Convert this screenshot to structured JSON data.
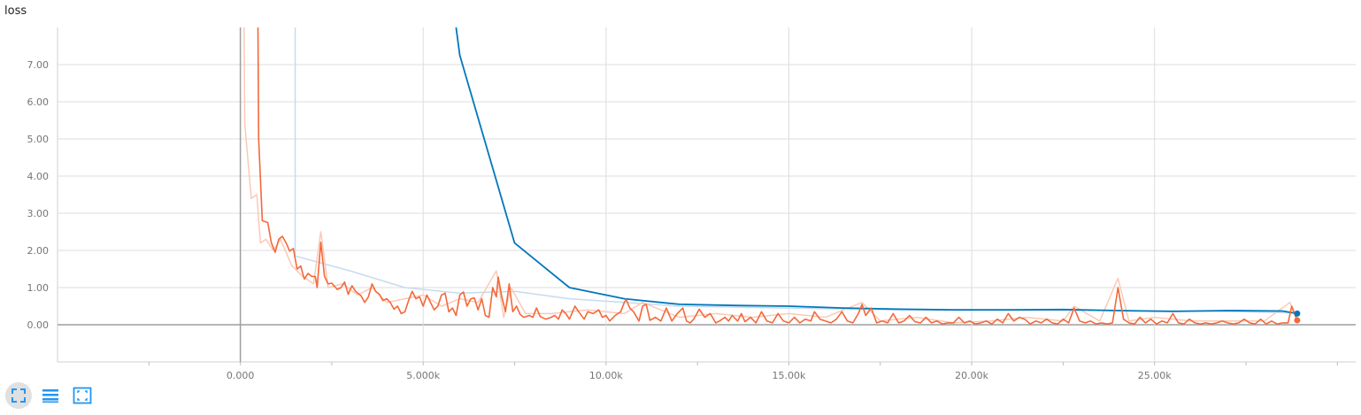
{
  "title": "loss",
  "toolbar": {
    "buttons": [
      {
        "icon": "fullscreen-icon",
        "active": true
      },
      {
        "icon": "list-icon",
        "active": false
      },
      {
        "icon": "fit-domain-icon",
        "active": false
      }
    ],
    "icon_color": "#2196f3"
  },
  "chart_data": {
    "type": "line",
    "xlim": [
      -5000,
      30500
    ],
    "ylim": [
      -1.0,
      8.0
    ],
    "x_ticks": [
      0,
      5000,
      10000,
      15000,
      20000,
      25000
    ],
    "x_tick_labels": [
      "0.000",
      "5.000k",
      "10.00k",
      "15.00k",
      "20.00k",
      "25.00k"
    ],
    "y_ticks": [
      0,
      1,
      2,
      3,
      4,
      5,
      6,
      7
    ],
    "y_tick_labels": [
      "0.00",
      "1.00",
      "2.00",
      "3.00",
      "4.00",
      "5.00",
      "6.00",
      "7.00"
    ],
    "grid": true,
    "series": [
      {
        "color": "#0077bb",
        "raw_color": "#c6dbef",
        "raw": [
          [
            1500,
            8.0
          ],
          [
            1500,
            1.85
          ],
          [
            3000,
            1.45
          ],
          [
            4500,
            1.0
          ],
          [
            6000,
            0.85
          ],
          [
            7500,
            0.9
          ],
          [
            9000,
            0.7
          ],
          [
            10500,
            0.6
          ],
          [
            12000,
            0.5
          ],
          [
            15000,
            0.45
          ],
          [
            18000,
            0.4
          ],
          [
            21000,
            0.4
          ],
          [
            24000,
            0.38
          ],
          [
            27000,
            0.36
          ],
          [
            28800,
            0.32
          ]
        ],
        "smoothed": [
          [
            5900,
            8.0
          ],
          [
            6000,
            7.25
          ],
          [
            7500,
            2.2
          ],
          [
            9000,
            1.0
          ],
          [
            10500,
            0.7
          ],
          [
            12000,
            0.55
          ],
          [
            13500,
            0.52
          ],
          [
            15000,
            0.5
          ],
          [
            16500,
            0.45
          ],
          [
            18000,
            0.42
          ],
          [
            19500,
            0.4
          ],
          [
            21000,
            0.4
          ],
          [
            22500,
            0.41
          ],
          [
            24000,
            0.38
          ],
          [
            25500,
            0.36
          ],
          [
            27000,
            0.38
          ],
          [
            28500,
            0.37
          ],
          [
            28900,
            0.3
          ]
        ]
      },
      {
        "color": "#f4683a",
        "raw_color": "#fbc9b6",
        "raw": [
          [
            100,
            8.0
          ],
          [
            120,
            5.4
          ],
          [
            300,
            3.4
          ],
          [
            450,
            3.5
          ],
          [
            550,
            2.2
          ],
          [
            700,
            2.3
          ],
          [
            900,
            2.0
          ],
          [
            1100,
            2.3
          ],
          [
            1400,
            1.6
          ],
          [
            1700,
            1.3
          ],
          [
            2000,
            1.1
          ],
          [
            2200,
            2.5
          ],
          [
            2400,
            1.0
          ],
          [
            2800,
            1.1
          ],
          [
            3200,
            0.8
          ],
          [
            3600,
            1.0
          ],
          [
            4000,
            0.6
          ],
          [
            4500,
            0.7
          ],
          [
            5000,
            0.8
          ],
          [
            5500,
            0.5
          ],
          [
            6000,
            0.7
          ],
          [
            6500,
            0.6
          ],
          [
            7000,
            1.45
          ],
          [
            7200,
            0.2
          ],
          [
            7400,
            1.0
          ],
          [
            7800,
            0.3
          ],
          [
            8500,
            0.3
          ],
          [
            9500,
            0.4
          ],
          [
            10500,
            0.3
          ],
          [
            11000,
            0.6
          ],
          [
            12000,
            0.2
          ],
          [
            13000,
            0.3
          ],
          [
            14000,
            0.2
          ],
          [
            15000,
            0.3
          ],
          [
            16000,
            0.2
          ],
          [
            17000,
            0.6
          ],
          [
            17500,
            0.1
          ],
          [
            18500,
            0.2
          ],
          [
            19500,
            0.05
          ],
          [
            20500,
            0.1
          ],
          [
            21500,
            0.2
          ],
          [
            22500,
            0.1
          ],
          [
            22800,
            0.5
          ],
          [
            23500,
            0.1
          ],
          [
            24000,
            1.25
          ],
          [
            24300,
            0.1
          ],
          [
            25000,
            0.2
          ],
          [
            26000,
            0.1
          ],
          [
            27000,
            0.1
          ],
          [
            28000,
            0.1
          ],
          [
            28700,
            0.6
          ],
          [
            28900,
            0.1
          ]
        ],
        "smoothed": [
          [
            480,
            8.0
          ],
          [
            500,
            5.0
          ],
          [
            600,
            2.8
          ],
          [
            750,
            2.75
          ],
          [
            850,
            2.2
          ],
          [
            950,
            1.95
          ],
          [
            1050,
            2.3
          ],
          [
            1150,
            2.38
          ],
          [
            1250,
            2.2
          ],
          [
            1350,
            1.98
          ],
          [
            1450,
            2.05
          ],
          [
            1550,
            1.5
          ],
          [
            1650,
            1.58
          ],
          [
            1750,
            1.23
          ],
          [
            1850,
            1.38
          ],
          [
            1950,
            1.3
          ],
          [
            2050,
            1.3
          ],
          [
            2100,
            1.0
          ],
          [
            2200,
            2.22
          ],
          [
            2300,
            1.3
          ],
          [
            2400,
            1.1
          ],
          [
            2500,
            1.12
          ],
          [
            2650,
            0.95
          ],
          [
            2750,
            1.0
          ],
          [
            2850,
            1.15
          ],
          [
            2950,
            0.82
          ],
          [
            3050,
            1.05
          ],
          [
            3150,
            0.9
          ],
          [
            3300,
            0.78
          ],
          [
            3400,
            0.6
          ],
          [
            3500,
            0.75
          ],
          [
            3600,
            1.1
          ],
          [
            3700,
            0.9
          ],
          [
            3800,
            0.82
          ],
          [
            3900,
            0.65
          ],
          [
            4000,
            0.7
          ],
          [
            4100,
            0.6
          ],
          [
            4200,
            0.42
          ],
          [
            4300,
            0.5
          ],
          [
            4400,
            0.3
          ],
          [
            4500,
            0.35
          ],
          [
            4600,
            0.65
          ],
          [
            4700,
            0.9
          ],
          [
            4800,
            0.7
          ],
          [
            4900,
            0.75
          ],
          [
            5000,
            0.5
          ],
          [
            5100,
            0.8
          ],
          [
            5200,
            0.6
          ],
          [
            5300,
            0.4
          ],
          [
            5400,
            0.5
          ],
          [
            5500,
            0.8
          ],
          [
            5600,
            0.85
          ],
          [
            5700,
            0.35
          ],
          [
            5800,
            0.45
          ],
          [
            5900,
            0.25
          ],
          [
            6000,
            0.8
          ],
          [
            6100,
            0.88
          ],
          [
            6200,
            0.5
          ],
          [
            6300,
            0.7
          ],
          [
            6400,
            0.72
          ],
          [
            6500,
            0.4
          ],
          [
            6600,
            0.7
          ],
          [
            6700,
            0.25
          ],
          [
            6800,
            0.2
          ],
          [
            6900,
            1.0
          ],
          [
            7000,
            0.75
          ],
          [
            7050,
            1.28
          ],
          [
            7150,
            0.75
          ],
          [
            7250,
            0.35
          ],
          [
            7350,
            1.1
          ],
          [
            7450,
            0.35
          ],
          [
            7550,
            0.5
          ],
          [
            7650,
            0.28
          ],
          [
            7750,
            0.2
          ],
          [
            7900,
            0.25
          ],
          [
            8000,
            0.2
          ],
          [
            8100,
            0.45
          ],
          [
            8200,
            0.22
          ],
          [
            8350,
            0.15
          ],
          [
            8500,
            0.2
          ],
          [
            8600,
            0.25
          ],
          [
            8700,
            0.15
          ],
          [
            8800,
            0.4
          ],
          [
            8900,
            0.3
          ],
          [
            9000,
            0.15
          ],
          [
            9150,
            0.5
          ],
          [
            9250,
            0.35
          ],
          [
            9400,
            0.15
          ],
          [
            9500,
            0.35
          ],
          [
            9650,
            0.3
          ],
          [
            9800,
            0.4
          ],
          [
            9900,
            0.2
          ],
          [
            10000,
            0.25
          ],
          [
            10100,
            0.1
          ],
          [
            10250,
            0.25
          ],
          [
            10400,
            0.35
          ],
          [
            10500,
            0.6
          ],
          [
            10550,
            0.68
          ],
          [
            10650,
            0.45
          ],
          [
            10750,
            0.35
          ],
          [
            10900,
            0.1
          ],
          [
            11000,
            0.5
          ],
          [
            11100,
            0.55
          ],
          [
            11200,
            0.12
          ],
          [
            11350,
            0.2
          ],
          [
            11500,
            0.1
          ],
          [
            11650,
            0.45
          ],
          [
            11800,
            0.1
          ],
          [
            11950,
            0.3
          ],
          [
            12100,
            0.45
          ],
          [
            12200,
            0.1
          ],
          [
            12300,
            0.05
          ],
          [
            12400,
            0.15
          ],
          [
            12550,
            0.42
          ],
          [
            12700,
            0.2
          ],
          [
            12850,
            0.3
          ],
          [
            13000,
            0.05
          ],
          [
            13100,
            0.1
          ],
          [
            13250,
            0.2
          ],
          [
            13350,
            0.1
          ],
          [
            13450,
            0.25
          ],
          [
            13600,
            0.1
          ],
          [
            13700,
            0.3
          ],
          [
            13800,
            0.08
          ],
          [
            13950,
            0.2
          ],
          [
            14100,
            0.05
          ],
          [
            14250,
            0.35
          ],
          [
            14400,
            0.1
          ],
          [
            14550,
            0.05
          ],
          [
            14700,
            0.3
          ],
          [
            14850,
            0.1
          ],
          [
            15000,
            0.05
          ],
          [
            15150,
            0.2
          ],
          [
            15300,
            0.05
          ],
          [
            15450,
            0.15
          ],
          [
            15600,
            0.1
          ],
          [
            15700,
            0.35
          ],
          [
            15850,
            0.15
          ],
          [
            16000,
            0.1
          ],
          [
            16150,
            0.05
          ],
          [
            16300,
            0.15
          ],
          [
            16450,
            0.35
          ],
          [
            16600,
            0.1
          ],
          [
            16750,
            0.05
          ],
          [
            16900,
            0.3
          ],
          [
            17000,
            0.55
          ],
          [
            17100,
            0.25
          ],
          [
            17250,
            0.45
          ],
          [
            17400,
            0.05
          ],
          [
            17550,
            0.1
          ],
          [
            17700,
            0.05
          ],
          [
            17850,
            0.3
          ],
          [
            18000,
            0.05
          ],
          [
            18150,
            0.1
          ],
          [
            18300,
            0.25
          ],
          [
            18450,
            0.08
          ],
          [
            18600,
            0.05
          ],
          [
            18750,
            0.2
          ],
          [
            18900,
            0.05
          ],
          [
            19050,
            0.1
          ],
          [
            19200,
            0.02
          ],
          [
            19350,
            0.05
          ],
          [
            19500,
            0.05
          ],
          [
            19650,
            0.2
          ],
          [
            19800,
            0.05
          ],
          [
            19950,
            0.1
          ],
          [
            20100,
            0.02
          ],
          [
            20250,
            0.05
          ],
          [
            20400,
            0.1
          ],
          [
            20550,
            0.02
          ],
          [
            20700,
            0.15
          ],
          [
            20850,
            0.05
          ],
          [
            21000,
            0.3
          ],
          [
            21150,
            0.1
          ],
          [
            21300,
            0.2
          ],
          [
            21450,
            0.15
          ],
          [
            21600,
            0.02
          ],
          [
            21750,
            0.1
          ],
          [
            21900,
            0.05
          ],
          [
            22050,
            0.15
          ],
          [
            22200,
            0.05
          ],
          [
            22350,
            0.02
          ],
          [
            22500,
            0.15
          ],
          [
            22650,
            0.05
          ],
          [
            22800,
            0.45
          ],
          [
            22950,
            0.1
          ],
          [
            23100,
            0.05
          ],
          [
            23250,
            0.1
          ],
          [
            23400,
            0.02
          ],
          [
            23550,
            0.05
          ],
          [
            23700,
            0.02
          ],
          [
            23850,
            0.05
          ],
          [
            24000,
            1.0
          ],
          [
            24150,
            0.15
          ],
          [
            24300,
            0.05
          ],
          [
            24450,
            0.02
          ],
          [
            24600,
            0.2
          ],
          [
            24750,
            0.05
          ],
          [
            24900,
            0.15
          ],
          [
            25050,
            0.02
          ],
          [
            25200,
            0.1
          ],
          [
            25350,
            0.05
          ],
          [
            25500,
            0.3
          ],
          [
            25650,
            0.05
          ],
          [
            25800,
            0.02
          ],
          [
            25950,
            0.15
          ],
          [
            26100,
            0.05
          ],
          [
            26250,
            0.02
          ],
          [
            26400,
            0.05
          ],
          [
            26550,
            0.02
          ],
          [
            26700,
            0.05
          ],
          [
            26850,
            0.1
          ],
          [
            27000,
            0.05
          ],
          [
            27150,
            0.02
          ],
          [
            27300,
            0.05
          ],
          [
            27450,
            0.15
          ],
          [
            27600,
            0.05
          ],
          [
            27750,
            0.02
          ],
          [
            27900,
            0.15
          ],
          [
            28050,
            0.02
          ],
          [
            28200,
            0.1
          ],
          [
            28350,
            0.02
          ],
          [
            28500,
            0.05
          ],
          [
            28650,
            0.05
          ],
          [
            28750,
            0.5
          ],
          [
            28900,
            0.12
          ]
        ]
      }
    ]
  }
}
